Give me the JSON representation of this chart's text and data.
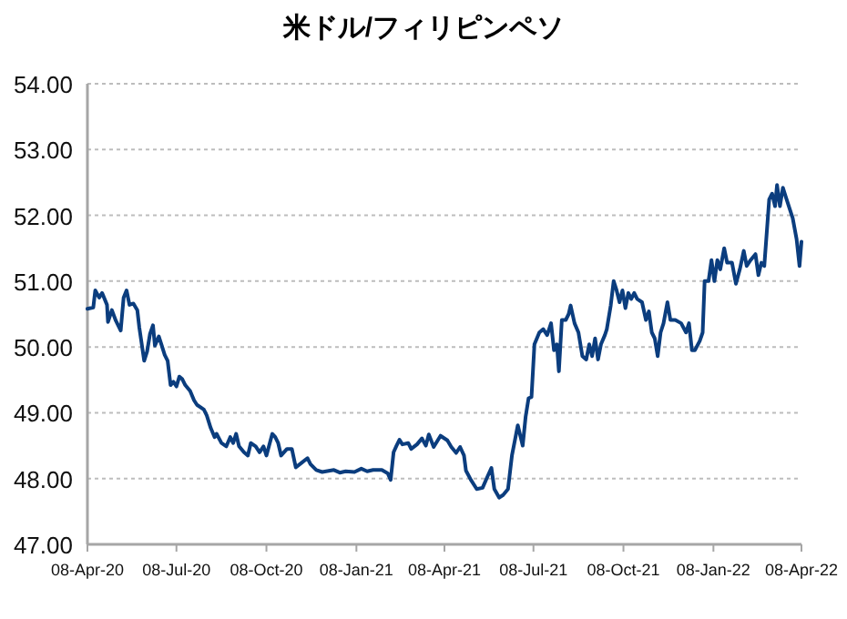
{
  "chart_data": {
    "type": "line",
    "title": "米ドル/フィリピンペソ",
    "grid": "y",
    "marker": "none",
    "line_style": "solid",
    "xlim": [
      "2020-04-08",
      "2022-04-08"
    ],
    "xticks": [
      {
        "value": "2020-04-08",
        "label": "08-Apr-20"
      },
      {
        "value": "2020-07-08",
        "label": "08-Jul-20"
      },
      {
        "value": "2020-10-08",
        "label": "08-Oct-20"
      },
      {
        "value": "2021-01-08",
        "label": "08-Jan-21"
      },
      {
        "value": "2021-04-08",
        "label": "08-Apr-21"
      },
      {
        "value": "2021-07-08",
        "label": "08-Jul-21"
      },
      {
        "value": "2021-10-08",
        "label": "08-Oct-21"
      },
      {
        "value": "2022-01-08",
        "label": "08-Jan-22"
      },
      {
        "value": "2022-04-08",
        "label": "08-Apr-22"
      }
    ],
    "ylim": [
      47,
      54
    ],
    "yticks": [
      {
        "value": 47,
        "label": "47.00"
      },
      {
        "value": 48,
        "label": "48.00"
      },
      {
        "value": 49,
        "label": "49.00"
      },
      {
        "value": 50,
        "label": "50.00"
      },
      {
        "value": 51,
        "label": "51.00"
      },
      {
        "value": 52,
        "label": "52.00"
      },
      {
        "value": 53,
        "label": "53.00"
      },
      {
        "value": 54,
        "label": "54.00"
      }
    ],
    "x": [
      "2020-04-08",
      "2020-04-14",
      "2020-04-16",
      "2020-04-20",
      "2020-04-23",
      "2020-04-28",
      "2020-04-29",
      "2020-05-03",
      "2020-05-07",
      "2020-05-12",
      "2020-05-15",
      "2020-05-18",
      "2020-05-21",
      "2020-05-25",
      "2020-05-29",
      "2020-05-31",
      "2020-06-05",
      "2020-06-08",
      "2020-06-11",
      "2020-06-14",
      "2020-06-16",
      "2020-06-20",
      "2020-06-23",
      "2020-06-26",
      "2020-06-29",
      "2020-07-02",
      "2020-07-05",
      "2020-07-08",
      "2020-07-11",
      "2020-07-14",
      "2020-07-17",
      "2020-07-22",
      "2020-07-26",
      "2020-07-29",
      "2020-08-05",
      "2020-08-08",
      "2020-08-12",
      "2020-08-16",
      "2020-08-18",
      "2020-08-23",
      "2020-08-28",
      "2020-09-01",
      "2020-09-04",
      "2020-09-07",
      "2020-09-10",
      "2020-09-15",
      "2020-09-19",
      "2020-09-22",
      "2020-09-27",
      "2020-10-01",
      "2020-10-05",
      "2020-10-08",
      "2020-10-14",
      "2020-10-17",
      "2020-10-20",
      "2020-10-23",
      "2020-10-29",
      "2020-11-03",
      "2020-11-07",
      "2020-11-13",
      "2020-11-19",
      "2020-11-22",
      "2020-11-28",
      "2020-12-04",
      "2020-12-16",
      "2020-12-22",
      "2020-12-28",
      "2021-01-06",
      "2021-01-13",
      "2021-01-19",
      "2021-01-25",
      "2021-02-03",
      "2021-02-09",
      "2021-02-12",
      "2021-02-15",
      "2021-02-18",
      "2021-02-21",
      "2021-02-24",
      "2021-03-02",
      "2021-03-05",
      "2021-03-11",
      "2021-03-16",
      "2021-03-20",
      "2021-03-23",
      "2021-03-28",
      "2021-04-04",
      "2021-04-11",
      "2021-04-15",
      "2021-04-20",
      "2021-04-24",
      "2021-04-28",
      "2021-04-30",
      "2021-05-05",
      "2021-05-11",
      "2021-05-17",
      "2021-05-22",
      "2021-05-26",
      "2021-05-29",
      "2021-06-03",
      "2021-06-07",
      "2021-06-12",
      "2021-06-16",
      "2021-06-19",
      "2021-06-22",
      "2021-06-27",
      "2021-06-30",
      "2021-07-03",
      "2021-07-06",
      "2021-07-09",
      "2021-07-14",
      "2021-07-18",
      "2021-07-22",
      "2021-07-26",
      "2021-07-29",
      "2021-08-01",
      "2021-08-03",
      "2021-08-06",
      "2021-08-10",
      "2021-08-13",
      "2021-08-15",
      "2021-08-19",
      "2021-08-23",
      "2021-08-27",
      "2021-08-31",
      "2021-09-03",
      "2021-09-06",
      "2021-09-09",
      "2021-09-12",
      "2021-09-15",
      "2021-09-19",
      "2021-09-21",
      "2021-09-25",
      "2021-09-28",
      "2021-10-01",
      "2021-10-04",
      "2021-10-07",
      "2021-10-10",
      "2021-10-13",
      "2021-10-16",
      "2021-10-19",
      "2021-10-22",
      "2021-10-27",
      "2021-10-31",
      "2021-11-03",
      "2021-11-06",
      "2021-11-09",
      "2021-11-12",
      "2021-11-15",
      "2021-11-18",
      "2021-11-22",
      "2021-11-25",
      "2021-11-30",
      "2021-12-06",
      "2021-12-11",
      "2021-12-14",
      "2021-12-17",
      "2021-12-20",
      "2021-12-25",
      "2021-12-28",
      "2021-12-30",
      "2022-01-03",
      "2022-01-06",
      "2022-01-09",
      "2022-01-12",
      "2022-01-15",
      "2022-01-19",
      "2022-01-22",
      "2022-01-27",
      "2022-01-31",
      "2022-02-04",
      "2022-02-08",
      "2022-02-11",
      "2022-02-15",
      "2022-02-20",
      "2022-02-23",
      "2022-02-26",
      "2022-03-01",
      "2022-03-06",
      "2022-03-09",
      "2022-03-12",
      "2022-03-14",
      "2022-03-17",
      "2022-03-20",
      "2022-03-23",
      "2022-03-28",
      "2022-03-30",
      "2022-04-03",
      "2022-04-06",
      "2022-04-08"
    ],
    "series": [
      {
        "color": "#0b3d7e",
        "values": [
          50.58,
          50.6,
          50.86,
          50.75,
          50.82,
          50.64,
          50.38,
          50.56,
          50.4,
          50.25,
          50.75,
          50.86,
          50.64,
          50.66,
          50.56,
          50.3,
          49.79,
          49.93,
          50.2,
          50.33,
          50.02,
          50.16,
          50.02,
          49.88,
          49.79,
          49.42,
          49.47,
          49.4,
          49.55,
          49.51,
          49.42,
          49.33,
          49.19,
          49.12,
          49.05,
          48.96,
          48.77,
          48.63,
          48.68,
          48.54,
          48.49,
          48.63,
          48.54,
          48.68,
          48.49,
          48.4,
          48.35,
          48.54,
          48.49,
          48.4,
          48.49,
          48.35,
          48.68,
          48.63,
          48.54,
          48.35,
          48.45,
          48.45,
          48.17,
          48.24,
          48.31,
          48.22,
          48.13,
          48.1,
          48.13,
          48.09,
          48.11,
          48.1,
          48.15,
          48.11,
          48.13,
          48.13,
          48.08,
          47.98,
          48.4,
          48.5,
          48.59,
          48.52,
          48.54,
          48.45,
          48.52,
          48.61,
          48.5,
          48.67,
          48.48,
          48.65,
          48.58,
          48.48,
          48.39,
          48.48,
          48.35,
          48.12,
          47.98,
          47.84,
          47.86,
          48.03,
          48.16,
          47.84,
          47.71,
          47.75,
          47.84,
          48.35,
          48.58,
          48.81,
          48.5,
          48.94,
          49.22,
          49.24,
          50.04,
          50.22,
          50.27,
          50.18,
          50.36,
          49.95,
          50.04,
          49.63,
          50.41,
          50.41,
          50.5,
          50.63,
          50.36,
          50.22,
          49.86,
          49.81,
          50.04,
          49.86,
          50.13,
          49.81,
          50.04,
          50.18,
          50.27,
          50.63,
          51.0,
          50.86,
          50.68,
          50.86,
          50.59,
          50.82,
          50.73,
          50.82,
          50.73,
          50.68,
          50.41,
          50.54,
          50.22,
          50.13,
          49.86,
          50.22,
          50.36,
          50.68,
          50.41,
          50.41,
          50.36,
          50.22,
          50.36,
          49.95,
          49.95,
          50.09,
          50.22,
          51.0,
          51.0,
          51.32,
          51.0,
          51.32,
          51.18,
          51.5,
          51.28,
          51.28,
          50.96,
          51.18,
          51.46,
          51.23,
          51.32,
          51.41,
          51.09,
          51.28,
          51.23,
          52.24,
          52.33,
          52.14,
          52.46,
          52.14,
          52.42,
          52.28,
          52.05,
          51.96,
          51.64,
          51.23,
          51.6
        ]
      }
    ]
  }
}
